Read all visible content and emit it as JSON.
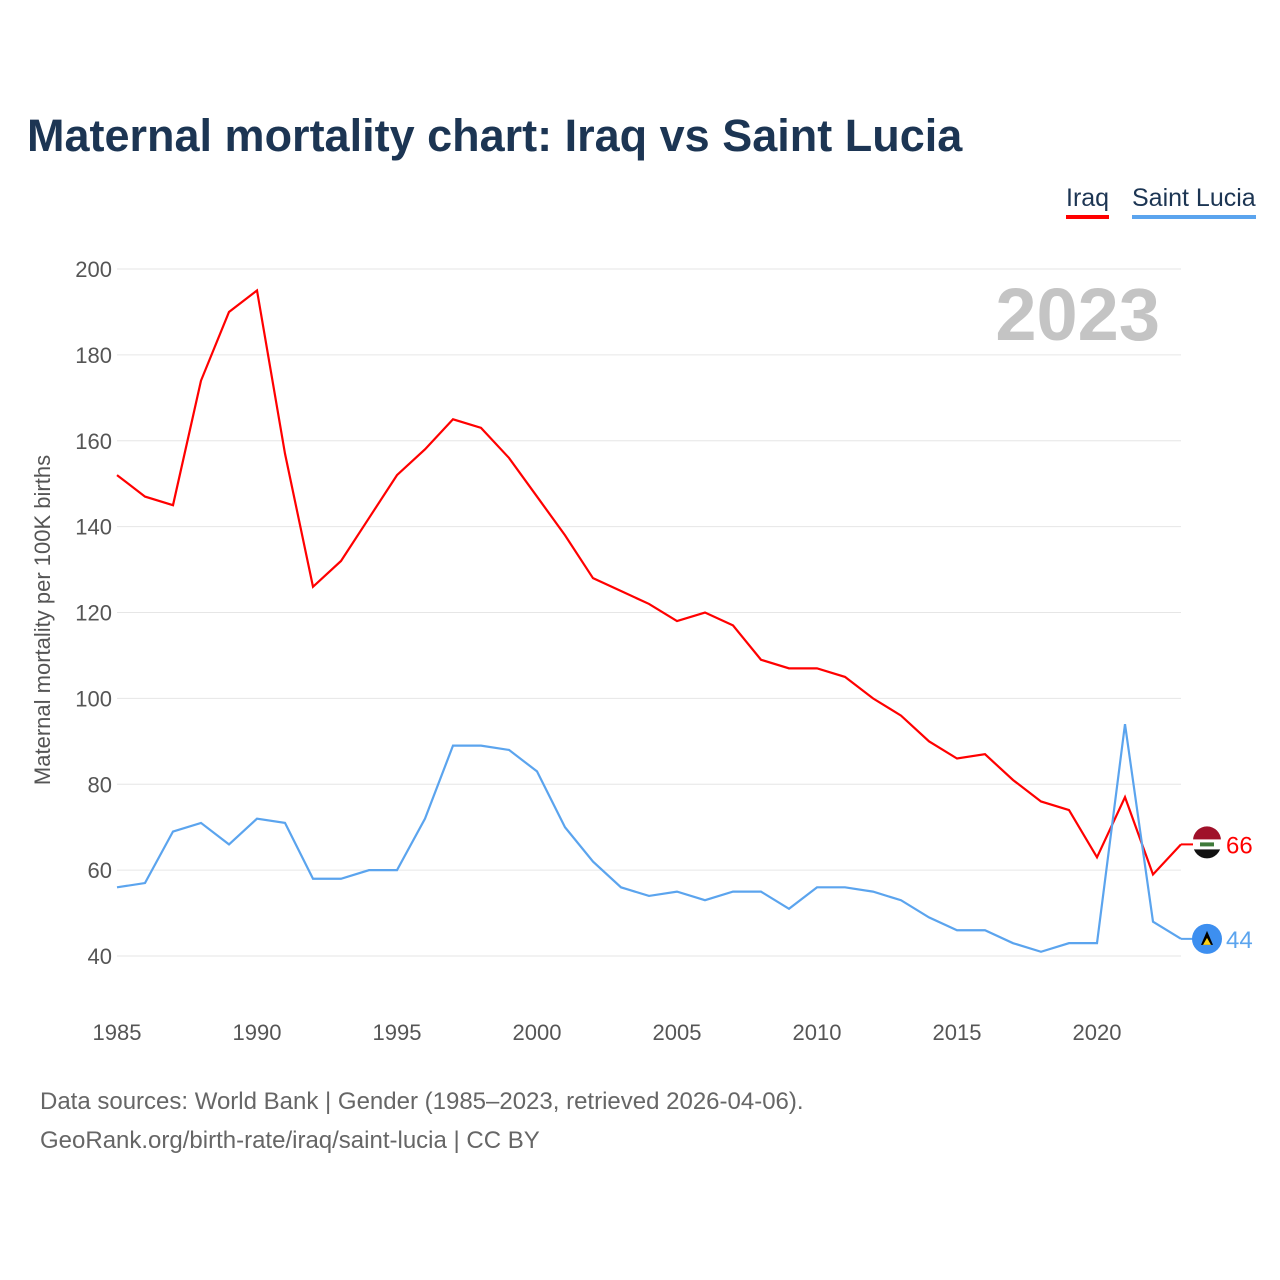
{
  "chart_data": {
    "type": "line",
    "title": "Maternal mortality chart: Iraq vs Saint Lucia",
    "ylabel": "Maternal mortality per 100K births",
    "xlabel": "",
    "year_label": "2023",
    "ylim": [
      30,
      200
    ],
    "xlim": [
      1985,
      2023
    ],
    "yticks": [
      40,
      60,
      80,
      100,
      120,
      140,
      160,
      180,
      200
    ],
    "xticks": [
      1985,
      1990,
      1995,
      2000,
      2005,
      2010,
      2015,
      2020
    ],
    "grid": true,
    "legend_position": "top-right",
    "x": [
      1985,
      1986,
      1987,
      1988,
      1989,
      1990,
      1991,
      1992,
      1993,
      1994,
      1995,
      1996,
      1997,
      1998,
      1999,
      2000,
      2001,
      2002,
      2003,
      2004,
      2005,
      2006,
      2007,
      2008,
      2009,
      2010,
      2011,
      2012,
      2013,
      2014,
      2015,
      2016,
      2017,
      2018,
      2019,
      2020,
      2021,
      2022,
      2023
    ],
    "series": [
      {
        "name": "Iraq",
        "color": "#ff0000",
        "end_label": "66",
        "flag": "iraq-flag",
        "values": [
          152,
          147,
          145,
          174,
          190,
          195,
          157,
          126,
          132,
          142,
          152,
          158,
          165,
          163,
          156,
          147,
          138,
          128,
          125,
          122,
          118,
          120,
          117,
          109,
          107,
          107,
          105,
          100,
          96,
          90,
          86,
          87,
          81,
          76,
          74,
          63,
          77,
          59,
          66
        ]
      },
      {
        "name": "Saint Lucia",
        "color": "#5ba4ee",
        "end_label": "44",
        "flag": "saint-lucia-flag",
        "values": [
          56,
          57,
          69,
          71,
          66,
          72,
          71,
          58,
          58,
          60,
          60,
          72,
          89,
          89,
          88,
          83,
          70,
          62,
          56,
          54,
          55,
          53,
          55,
          55,
          51,
          56,
          56,
          55,
          53,
          49,
          46,
          46,
          43,
          41,
          43,
          43,
          94,
          48,
          44
        ]
      }
    ]
  },
  "footer": {
    "line1": "Data sources: World Bank | Gender (1985–2023, retrieved 2026-04-06).",
    "line2": "GeoRank.org/birth-rate/iraq/saint-lucia | CC BY"
  }
}
